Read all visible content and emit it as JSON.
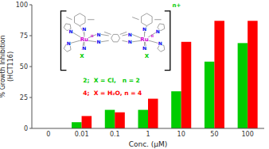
{
  "chart_data": {
    "type": "bar",
    "categories": [
      "0",
      "0.01",
      "0.1",
      "1",
      "10",
      "50",
      "100"
    ],
    "series": [
      {
        "name": "2;  X = Cl,   n = 2",
        "color": "#00cc00",
        "values": [
          0,
          5,
          15,
          15,
          30,
          54,
          69
        ]
      },
      {
        "name": "4;  X = H₂O, n = 4",
        "color": "#ff0000",
        "values": [
          0,
          10,
          13,
          24,
          70,
          87,
          87
        ]
      }
    ],
    "xlabel": "Conc. (μM)",
    "ylabel": "% Growth Inhibition\n(HCT116)",
    "ylim": [
      0,
      100
    ],
    "yticks": [
      0,
      25,
      50,
      75,
      100
    ],
    "grid": false,
    "legend": "center",
    "annotations": [
      "Ru",
      "II",
      "N",
      "N",
      "N",
      "N",
      "N",
      "N",
      "X",
      "Ru",
      "II",
      "N",
      "N",
      "N",
      "N",
      "N",
      "N",
      "X",
      "n+"
    ]
  }
}
